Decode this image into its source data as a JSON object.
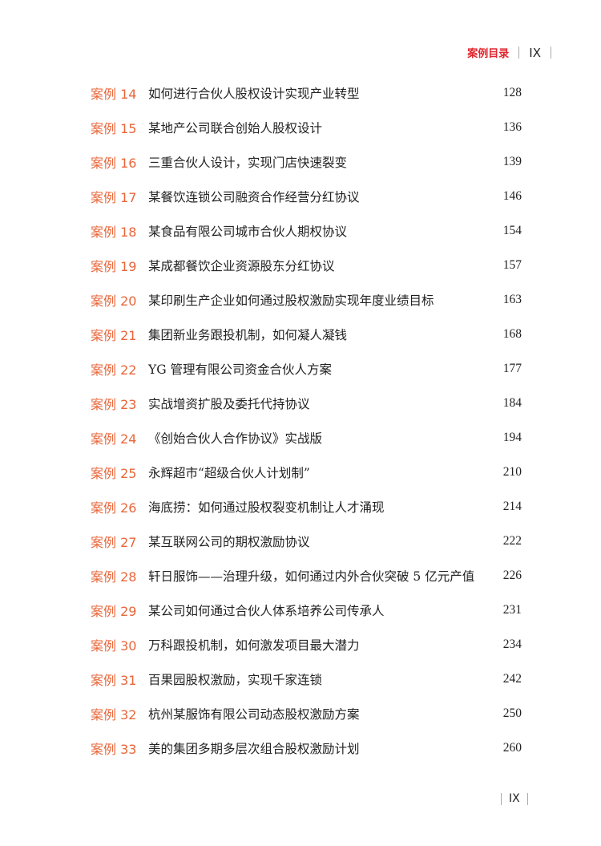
{
  "header": {
    "section_title": "案例目录",
    "page_number": "IX"
  },
  "entries": [
    {
      "label": "案例 14",
      "title": "如何进行合伙人股权设计实现产业转型",
      "page": "128"
    },
    {
      "label": "案例 15",
      "title": "某地产公司联合创始人股权设计",
      "page": "136"
    },
    {
      "label": "案例 16",
      "title": "三重合伙人设计，实现门店快速裂变",
      "page": "139"
    },
    {
      "label": "案例 17",
      "title": "某餐饮连锁公司融资合作经营分红协议",
      "page": "146"
    },
    {
      "label": "案例 18",
      "title": "某食品有限公司城市合伙人期权协议",
      "page": "154"
    },
    {
      "label": "案例 19",
      "title": "某成都餐饮企业资源股东分红协议",
      "page": "157"
    },
    {
      "label": "案例 20",
      "title": "某印刷生产企业如何通过股权激励实现年度业绩目标",
      "page": "163"
    },
    {
      "label": "案例 21",
      "title": "集团新业务跟投机制，如何凝人凝钱",
      "page": "168"
    },
    {
      "label": "案例 22",
      "title": "YG 管理有限公司资金合伙人方案",
      "page": "177"
    },
    {
      "label": "案例 23",
      "title": "实战增资扩股及委托代持协议",
      "page": "184"
    },
    {
      "label": "案例 24",
      "title": "《创始合伙人合作协议》实战版",
      "page": "194"
    },
    {
      "label": "案例 25",
      "title": "永辉超市“超级合伙人计划制”",
      "page": "210"
    },
    {
      "label": "案例 26",
      "title": "海底捞：如何通过股权裂变机制让人才涌现",
      "page": "214"
    },
    {
      "label": "案例 27",
      "title": "某互联网公司的期权激励协议",
      "page": "222"
    },
    {
      "label": "案例 28",
      "title": "轩日服饰——治理升级，如何通过内外合伙突破 5 亿元产值",
      "page": "226"
    },
    {
      "label": "案例 29",
      "title": "某公司如何通过合伙人体系培养公司传承人",
      "page": "231"
    },
    {
      "label": "案例 30",
      "title": "万科跟投机制，如何激发项目最大潜力",
      "page": "234"
    },
    {
      "label": "案例 31",
      "title": "百果园股权激励，实现千家连锁",
      "page": "242"
    },
    {
      "label": "案例 32",
      "title": "杭州某服饰有限公司动态股权激励方案",
      "page": "250"
    },
    {
      "label": "案例 33",
      "title": "美的集团多期多层次组合股权激励计划",
      "page": "260"
    }
  ],
  "footer": {
    "page_number": "IX"
  },
  "colors": {
    "section_title": "#e0262f",
    "case_label": "#e8663a"
  }
}
